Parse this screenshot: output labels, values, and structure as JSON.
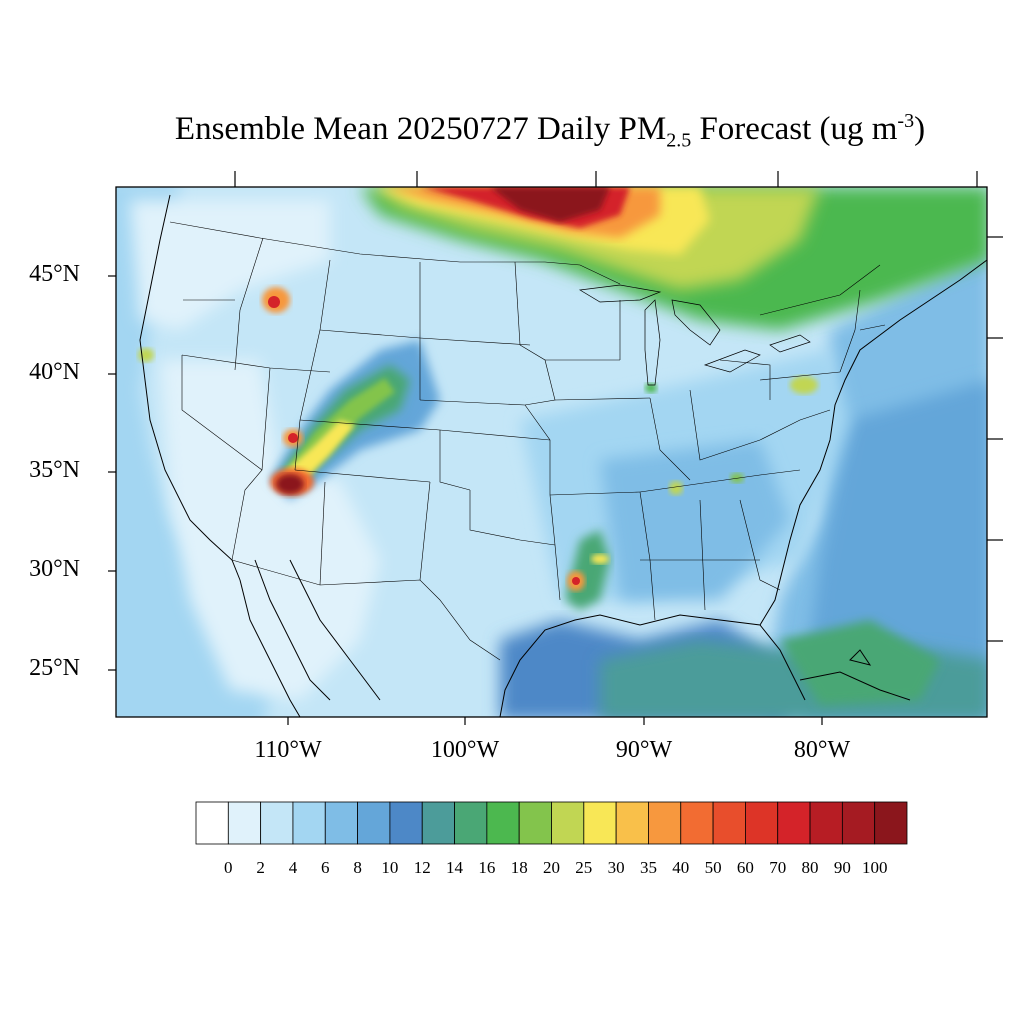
{
  "title": {
    "prefix": "Ensemble Mean 20250727 Daily PM",
    "sub": "2.5",
    "middle": " Forecast (ug m",
    "sup": "-3",
    "suffix": ")"
  },
  "lat_labels": [
    "45°N",
    "40°N",
    "35°N",
    "30°N",
    "25°N"
  ],
  "lon_labels": [
    "110°W",
    "100°W",
    "90°W",
    "80°W"
  ],
  "colorbar": {
    "labels": [
      "0",
      "2",
      "4",
      "6",
      "8",
      "10",
      "12",
      "14",
      "16",
      "18",
      "20",
      "25",
      "30",
      "35",
      "40",
      "50",
      "60",
      "70",
      "80",
      "90",
      "100"
    ],
    "colors": [
      "#ffffff",
      "#e0f2fb",
      "#c4e6f7",
      "#a3d6f2",
      "#7fbde6",
      "#64a6d9",
      "#4d88c7",
      "#4c9c9a",
      "#4aa775",
      "#4cb84f",
      "#83c44c",
      "#c1d653",
      "#f8e756",
      "#f9c04a",
      "#f7983e",
      "#f26c32",
      "#e84e2c",
      "#dd3427",
      "#d42329",
      "#b71d24",
      "#a51b22",
      "#8b161c"
    ]
  },
  "map_colors": {
    "background": "#c4e6f7",
    "ocean": "#64a6d9",
    "gulf": "#4d88c7",
    "light": "#e0f2fb",
    "smoke_green": "#4cb84f",
    "smoke_yellow": "#c1d653",
    "smoke_orange": "#f7983e",
    "smoke_red": "#d42329",
    "smoke_darkred": "#8b161c"
  }
}
